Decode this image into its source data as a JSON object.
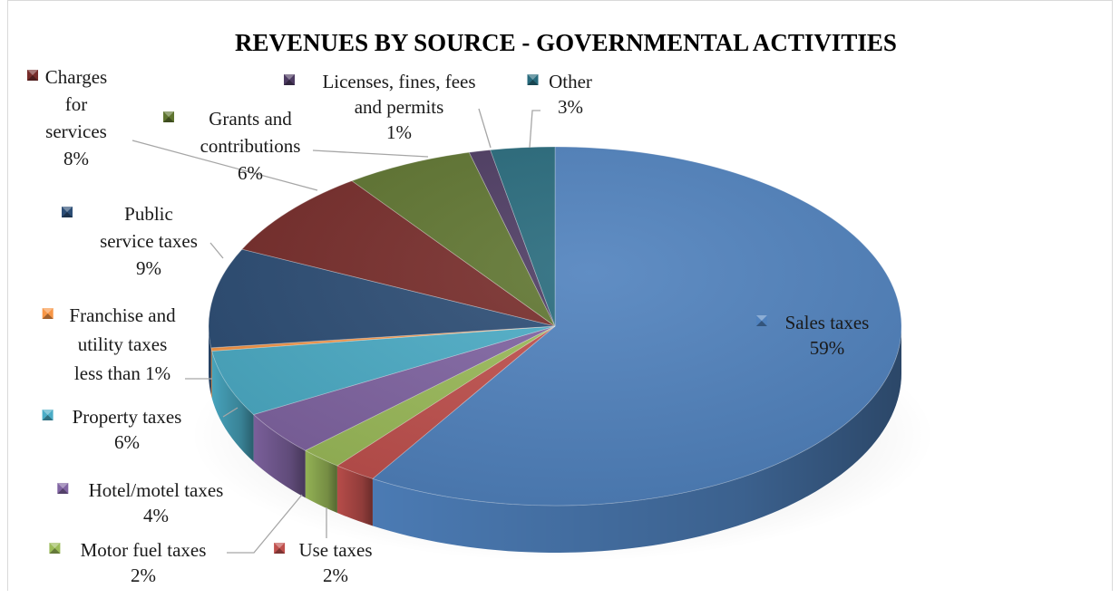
{
  "chart_data": {
    "type": "pie",
    "title": "REVENUES BY SOURCE - GOVERNMENTAL ACTIVITIES",
    "slices": [
      {
        "key": "sales",
        "name": "Sales taxes",
        "value": 59,
        "value_label": "59%",
        "color": "#4f81bd"
      },
      {
        "key": "use",
        "name": "Use taxes",
        "value": 2,
        "value_label": "2%",
        "color": "#c0504d"
      },
      {
        "key": "motor",
        "name": "Motor fuel taxes",
        "value": 2,
        "value_label": "2%",
        "color": "#9bbb59"
      },
      {
        "key": "hotel",
        "name": "Hotel/motel taxes",
        "value": 4,
        "value_label": "4%",
        "color": "#8064a2"
      },
      {
        "key": "property",
        "name": "Property taxes",
        "value": 6,
        "value_label": "6%",
        "color": "#4bacc6"
      },
      {
        "key": "franchise",
        "name": "Franchise and utility taxes",
        "value": 0.3,
        "value_label": "less than 1%",
        "color": "#f79646"
      },
      {
        "key": "public",
        "name": "Public service taxes",
        "value": 9,
        "value_label": "9%",
        "color": "#2c4d75"
      },
      {
        "key": "charges",
        "name": "Charges for services",
        "value": 8,
        "value_label": "8%",
        "color": "#772c2a"
      },
      {
        "key": "grants",
        "name": "Grants and contributions",
        "value": 6,
        "value_label": "6%",
        "color": "#5f7530"
      },
      {
        "key": "licenses",
        "name": "Licenses, fines, fees and permits",
        "value": 1,
        "value_label": "1%",
        "color": "#4d3b62"
      },
      {
        "key": "other",
        "name": "Other",
        "value": 3,
        "value_label": "3%",
        "color": "#276a7c"
      }
    ],
    "label_lines": {
      "sales": [
        "Sales taxes",
        "59%"
      ],
      "use": [
        "Use taxes",
        "2%"
      ],
      "motor": [
        "Motor fuel taxes",
        "2%"
      ],
      "hotel": [
        "Hotel/motel taxes",
        "4%"
      ],
      "property": [
        "Property taxes",
        "6%"
      ],
      "franchise": [
        "Franchise and",
        "utility taxes",
        "less than 1%"
      ],
      "public": [
        "Public",
        "service taxes",
        "9%"
      ],
      "charges": [
        "Charges",
        "for",
        "services",
        "8%"
      ],
      "grants": [
        "Grants and",
        "contributions",
        "6%"
      ],
      "licenses": [
        "Licenses, fines, fees",
        "and permits",
        "1%"
      ],
      "other": [
        "Other",
        "3%"
      ]
    },
    "legend": "none",
    "style": "3d-pie"
  }
}
